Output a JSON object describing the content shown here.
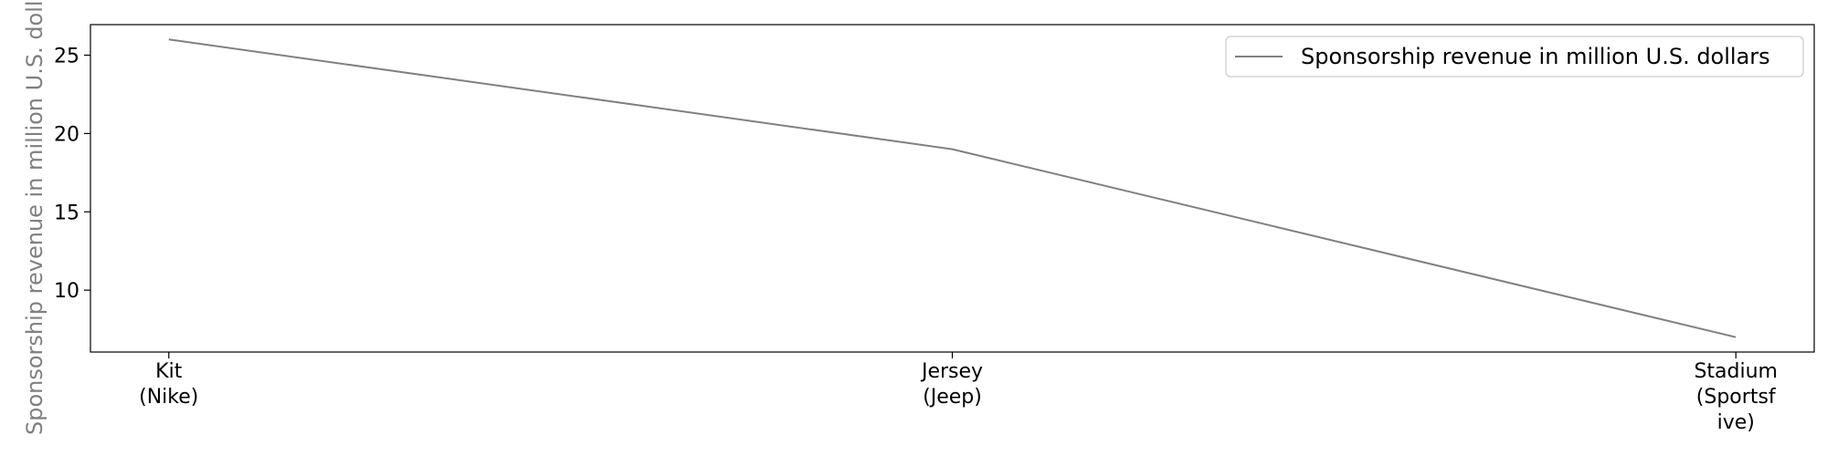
{
  "chart_data": {
    "type": "line",
    "categories": [
      "Kit\n(Nike)",
      "Jersey\n(Jeep)",
      "Stadium\n(Sportsf\nive)"
    ],
    "series": [
      {
        "name": "Sponsorship revenue in million U.S. dollars",
        "values": [
          26,
          19,
          7
        ],
        "color": "#808080"
      }
    ],
    "xlabel": "",
    "ylabel": "Sponsorship revenue in million U.S. dollars",
    "ylim": [
      6.05,
      26.95
    ],
    "yticks": [
      10,
      15,
      20,
      25
    ],
    "grid": false,
    "legend": "top-right"
  }
}
